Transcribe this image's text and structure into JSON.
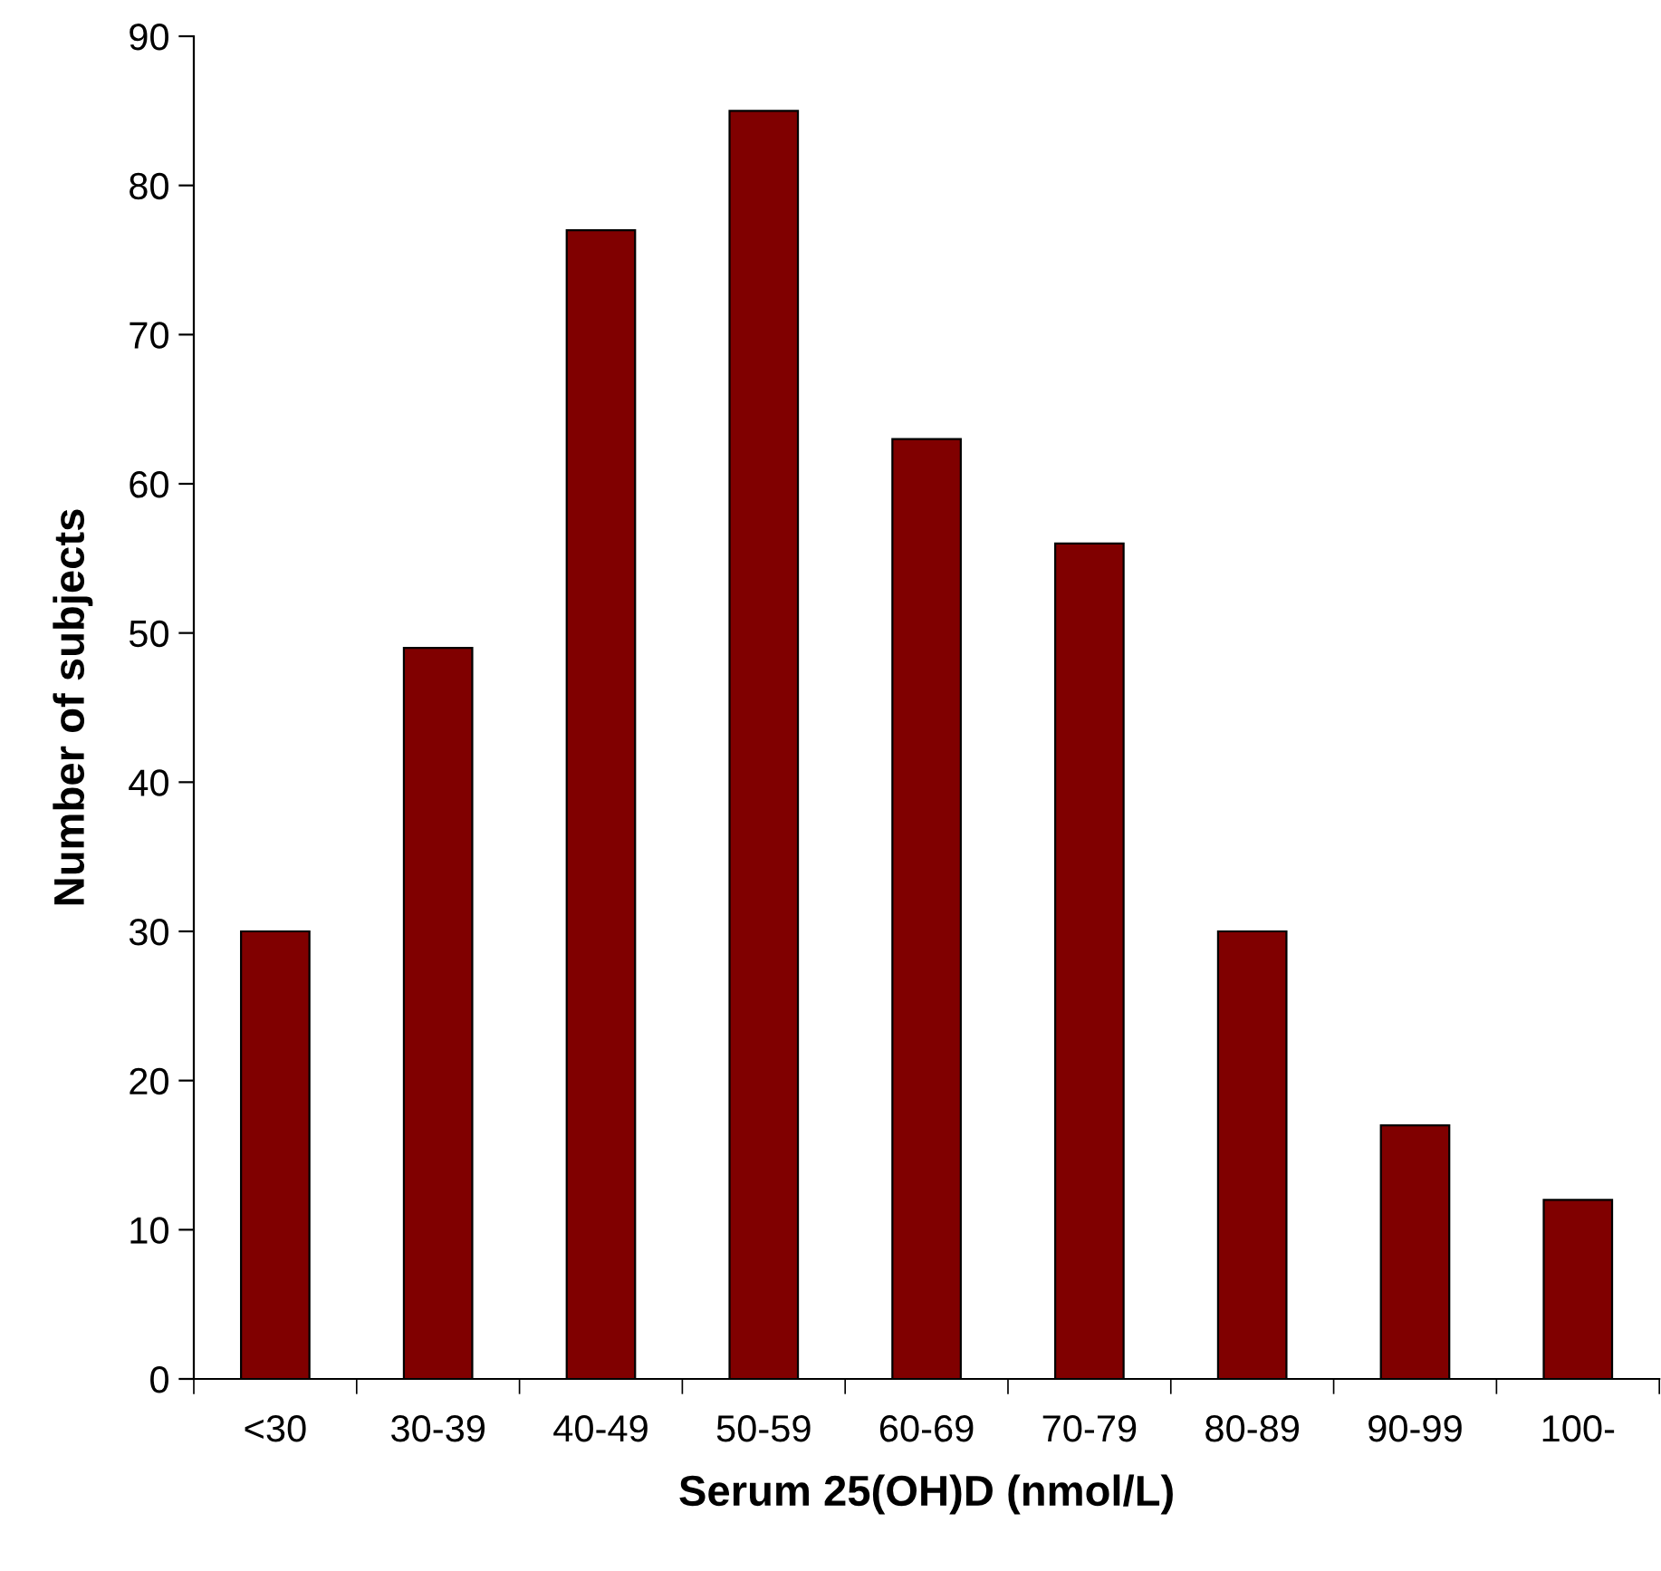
{
  "chart_data": {
    "type": "bar",
    "xlabel": "Serum 25(OH)D (nmol/L)",
    "ylabel": "Number of subjects",
    "categories": [
      "<30",
      "30-39",
      "40-49",
      "50-59",
      "60-69",
      "70-79",
      "80-89",
      "90-99",
      "100-"
    ],
    "values": [
      30,
      49,
      77,
      85,
      63,
      56,
      30,
      17,
      12
    ],
    "color": "#800000",
    "ylim": [
      0,
      90
    ],
    "yticks": [
      0,
      10,
      20,
      30,
      40,
      50,
      60,
      70,
      80,
      90
    ],
    "grid": false
  }
}
